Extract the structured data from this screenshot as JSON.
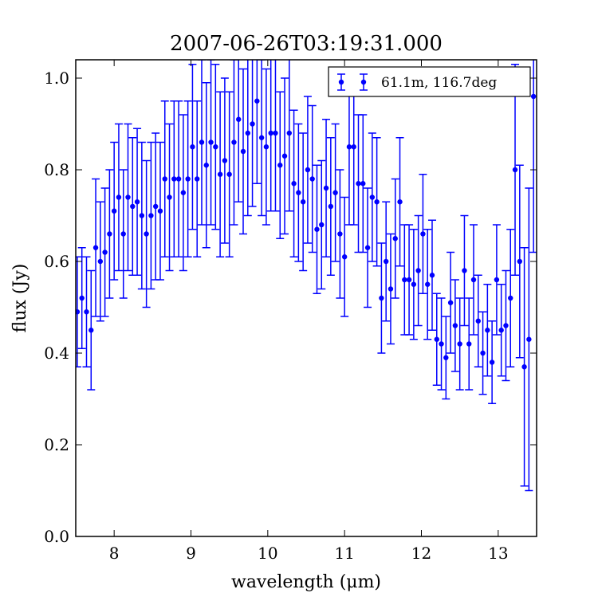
{
  "chart_data": {
    "type": "errorbar",
    "title": "2007-06-26T03:19:31.000",
    "x_label": "wavelength (μm)",
    "y_label": "flux (Jy)",
    "xlim": [
      7.5,
      13.5
    ],
    "ylim": [
      0,
      1.04
    ],
    "xticks": [
      8,
      9,
      10,
      11,
      12,
      13
    ],
    "yticks": [
      {
        "value": 0,
        "label": "0.0"
      },
      0.2,
      0.4,
      0.6,
      0.8,
      {
        "value": 1,
        "label": "1.0"
      }
    ],
    "legend": "upper right",
    "series": [
      {
        "name": "61.1m, 116.7deg",
        "color": "#0000ff",
        "x": [
          7.52,
          7.58,
          7.64,
          7.7,
          7.76,
          7.82,
          7.88,
          7.94,
          8.0,
          8.06,
          8.12,
          8.18,
          8.24,
          8.3,
          8.36,
          8.42,
          8.48,
          8.54,
          8.6,
          8.66,
          8.72,
          8.78,
          8.84,
          8.9,
          8.96,
          9.02,
          9.08,
          9.14,
          9.2,
          9.26,
          9.32,
          9.38,
          9.44,
          9.5,
          9.56,
          9.62,
          9.68,
          9.74,
          9.8,
          9.86,
          9.92,
          9.98,
          10.04,
          10.1,
          10.16,
          10.22,
          10.28,
          10.34,
          10.4,
          10.46,
          10.52,
          10.58,
          10.64,
          10.7,
          10.76,
          10.82,
          10.88,
          10.94,
          11.0,
          11.06,
          11.12,
          11.18,
          11.24,
          11.3,
          11.36,
          11.42,
          11.48,
          11.54,
          11.6,
          11.66,
          11.72,
          11.78,
          11.84,
          11.9,
          11.96,
          12.02,
          12.08,
          12.14,
          12.2,
          12.26,
          12.32,
          12.38,
          12.44,
          12.5,
          12.56,
          12.62,
          12.68,
          12.74,
          12.8,
          12.86,
          12.92,
          12.98,
          13.04,
          13.1,
          13.16,
          13.22,
          13.28,
          13.34,
          13.4,
          13.46
        ],
        "values": [
          0.49,
          0.52,
          0.49,
          0.45,
          0.63,
          0.6,
          0.62,
          0.66,
          0.71,
          0.74,
          0.66,
          0.74,
          0.72,
          0.73,
          0.7,
          0.66,
          0.7,
          0.72,
          0.71,
          0.78,
          0.74,
          0.78,
          0.78,
          0.75,
          0.78,
          0.85,
          0.78,
          0.86,
          0.81,
          0.86,
          0.85,
          0.79,
          0.82,
          0.79,
          0.86,
          0.91,
          0.84,
          0.88,
          0.9,
          0.95,
          0.87,
          0.85,
          0.88,
          0.88,
          0.81,
          0.83,
          0.88,
          0.77,
          0.75,
          0.73,
          0.8,
          0.78,
          0.67,
          0.68,
          0.76,
          0.72,
          0.75,
          0.66,
          0.61,
          0.85,
          0.85,
          0.77,
          0.77,
          0.63,
          0.74,
          0.73,
          0.52,
          0.6,
          0.54,
          0.65,
          0.73,
          0.56,
          0.56,
          0.55,
          0.58,
          0.66,
          0.55,
          0.57,
          0.43,
          0.42,
          0.39,
          0.51,
          0.46,
          0.42,
          0.58,
          0.42,
          0.56,
          0.47,
          0.4,
          0.45,
          0.38,
          0.56,
          0.45,
          0.46,
          0.52,
          0.8,
          0.6,
          0.37,
          0.43,
          0.96
        ],
        "errors": [
          0.12,
          0.11,
          0.12,
          0.13,
          0.15,
          0.13,
          0.14,
          0.14,
          0.15,
          0.16,
          0.14,
          0.16,
          0.15,
          0.16,
          0.16,
          0.16,
          0.16,
          0.16,
          0.15,
          0.17,
          0.16,
          0.17,
          0.17,
          0.17,
          0.17,
          0.18,
          0.17,
          0.18,
          0.18,
          0.18,
          0.18,
          0.18,
          0.18,
          0.18,
          0.18,
          0.18,
          0.18,
          0.18,
          0.18,
          0.18,
          0.17,
          0.17,
          0.17,
          0.17,
          0.16,
          0.17,
          0.17,
          0.16,
          0.15,
          0.15,
          0.16,
          0.16,
          0.14,
          0.14,
          0.15,
          0.15,
          0.15,
          0.14,
          0.13,
          0.17,
          0.17,
          0.15,
          0.15,
          0.13,
          0.14,
          0.14,
          0.12,
          0.13,
          0.12,
          0.13,
          0.14,
          0.12,
          0.12,
          0.12,
          0.12,
          0.13,
          0.12,
          0.12,
          0.1,
          0.1,
          0.09,
          0.11,
          0.1,
          0.1,
          0.12,
          0.1,
          0.12,
          0.1,
          0.09,
          0.1,
          0.09,
          0.12,
          0.1,
          0.12,
          0.15,
          0.23,
          0.21,
          0.26,
          0.33,
          0.34
        ]
      }
    ]
  }
}
